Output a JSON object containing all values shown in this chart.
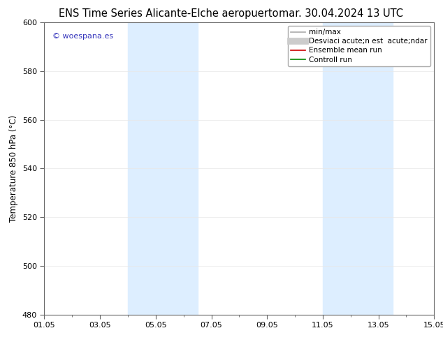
{
  "title_left": "ENS Time Series Alicante-Elche aeropuerto",
  "title_right": "mar. 30.04.2024 13 UTC",
  "ylabel": "Temperature 850 hPa (°C)",
  "ylim": [
    480,
    600
  ],
  "yticks": [
    480,
    500,
    520,
    540,
    560,
    580,
    600
  ],
  "xlim": [
    0,
    14
  ],
  "xtick_labels": [
    "01.05",
    "03.05",
    "05.05",
    "07.05",
    "09.05",
    "11.05",
    "13.05",
    "15.05"
  ],
  "xtick_positions": [
    0,
    2,
    4,
    6,
    8,
    10,
    12,
    14
  ],
  "shade_bands": [
    {
      "x_start": 3.0,
      "x_end": 5.5
    },
    {
      "x_start": 10.0,
      "x_end": 12.5
    }
  ],
  "shade_color": "#ddeeff",
  "watermark_text": "© woespana.es",
  "watermark_color": "#3333bb",
  "legend_items": [
    {
      "label": "min/max",
      "color": "#aaaaaa",
      "lw": 1.2
    },
    {
      "label": "Desviaci acute;n est  acute;ndar",
      "color": "#cccccc",
      "lw": 7
    },
    {
      "label": "Ensemble mean run",
      "color": "#cc0000",
      "lw": 1.2
    },
    {
      "label": "Controll run",
      "color": "#008800",
      "lw": 1.2
    }
  ],
  "bg_color": "#ffffff",
  "title_fontsize": 10.5,
  "ylabel_fontsize": 8.5,
  "tick_fontsize": 8,
  "legend_fontsize": 7.5,
  "watermark_fontsize": 8
}
